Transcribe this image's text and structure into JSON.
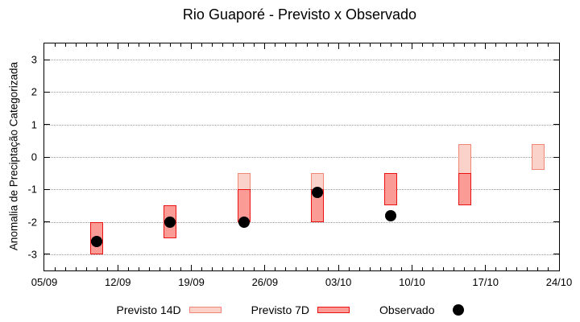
{
  "title": "Rio Guaporé - Previsto x Observado",
  "chart_data": {
    "type": "bar",
    "subtype": "forecast-range-bars-with-observed-scatter",
    "title": "Rio Guaporé - Previsto x Observado",
    "xlabel": "",
    "ylabel": "Anomalia de Preciptação Categorizada",
    "ylim": [
      -3.5,
      3.5
    ],
    "y_ticks": [
      3,
      2,
      1,
      0,
      -1,
      -2,
      -3
    ],
    "x_range_days": 49,
    "x_ticks": [
      {
        "label": "05/09",
        "day": 0
      },
      {
        "label": "12/09",
        "day": 7
      },
      {
        "label": "19/09",
        "day": 14
      },
      {
        "label": "26/09",
        "day": 21
      },
      {
        "label": "03/10",
        "day": 28
      },
      {
        "label": "10/10",
        "day": 35
      },
      {
        "label": "17/10",
        "day": 42
      },
      {
        "label": "24/10",
        "day": 49
      }
    ],
    "grid": "horizontal dotted lines at integer y values",
    "legend_position": "bottom-center",
    "legend": [
      {
        "label": "Previsto 14D",
        "marker": "light-pink-box"
      },
      {
        "label": "Previsto 7D",
        "marker": "red-box"
      },
      {
        "label": "Observado",
        "marker": "black-dot"
      }
    ],
    "clusters": [
      {
        "date": "10/09",
        "day": 5,
        "previsto_14d": [
          -2.0,
          -3.0
        ],
        "previsto_7d": [
          -2.0,
          -3.0
        ],
        "observado": -2.6
      },
      {
        "date": "17/09",
        "day": 12,
        "previsto_14d": [
          -1.5,
          -2.5
        ],
        "previsto_7d": [
          -1.5,
          -2.5
        ],
        "observado": -2.0
      },
      {
        "date": "24/09",
        "day": 19,
        "previsto_14d": [
          -0.5,
          -2.0
        ],
        "previsto_7d": [
          -1.0,
          -2.0
        ],
        "observado": -2.0
      },
      {
        "date": "01/10",
        "day": 26,
        "previsto_14d": [
          -0.5,
          -2.0
        ],
        "previsto_7d": [
          -1.0,
          -2.0
        ],
        "observado": -1.1
      },
      {
        "date": "08/10",
        "day": 33,
        "previsto_14d": [
          -0.5,
          -1.5
        ],
        "previsto_7d": [
          -0.5,
          -1.5
        ],
        "observado": -1.8
      },
      {
        "date": "15/10",
        "day": 40,
        "previsto_14d": [
          0.4,
          -1.5
        ],
        "previsto_7d": [
          -0.5,
          -1.5
        ],
        "observado": null
      },
      {
        "date": "22/10",
        "day": 47,
        "previsto_14d": [
          0.4,
          -0.4
        ],
        "previsto_7d": null,
        "observado": null
      }
    ],
    "colors": {
      "previsto_14d_fill": "#fbd2ca",
      "previsto_14d_border": "#f08878",
      "previsto_7d_fill": "#fb9b96",
      "previsto_7d_border": "#e91111",
      "observado": "#000000",
      "grid": "#999999",
      "axis": "#000000",
      "background": "#ffffff"
    }
  }
}
